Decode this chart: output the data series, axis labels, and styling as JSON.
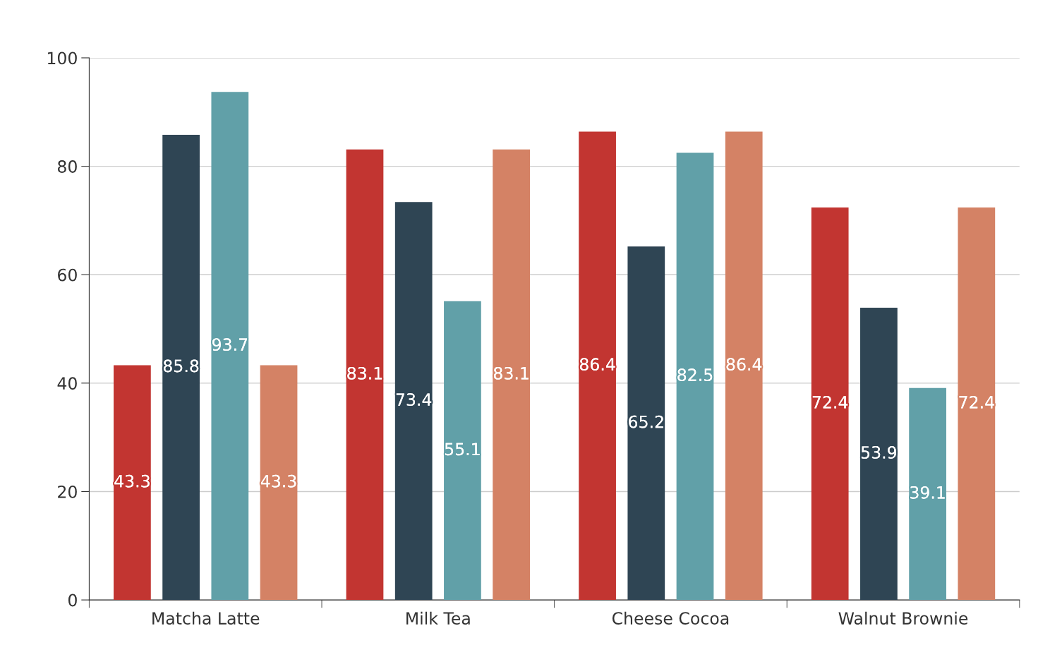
{
  "chart_data": {
    "type": "bar",
    "categories": [
      "Matcha Latte",
      "Milk Tea",
      "Cheese Cocoa",
      "Walnut Brownie"
    ],
    "series": [
      {
        "color": "#c23531",
        "values": [
          43.3,
          83.1,
          86.4,
          72.4
        ]
      },
      {
        "color": "#2f4554",
        "values": [
          85.8,
          73.4,
          65.2,
          53.9
        ]
      },
      {
        "color": "#61a0a8",
        "values": [
          93.7,
          55.1,
          82.5,
          39.1
        ]
      },
      {
        "color": "#d48265",
        "values": [
          43.3,
          83.1,
          86.4,
          72.4
        ]
      }
    ],
    "ylim": [
      0,
      100
    ],
    "yticks": [
      0,
      20,
      40,
      60,
      80,
      100
    ],
    "grid": "y",
    "data_labels": true
  }
}
